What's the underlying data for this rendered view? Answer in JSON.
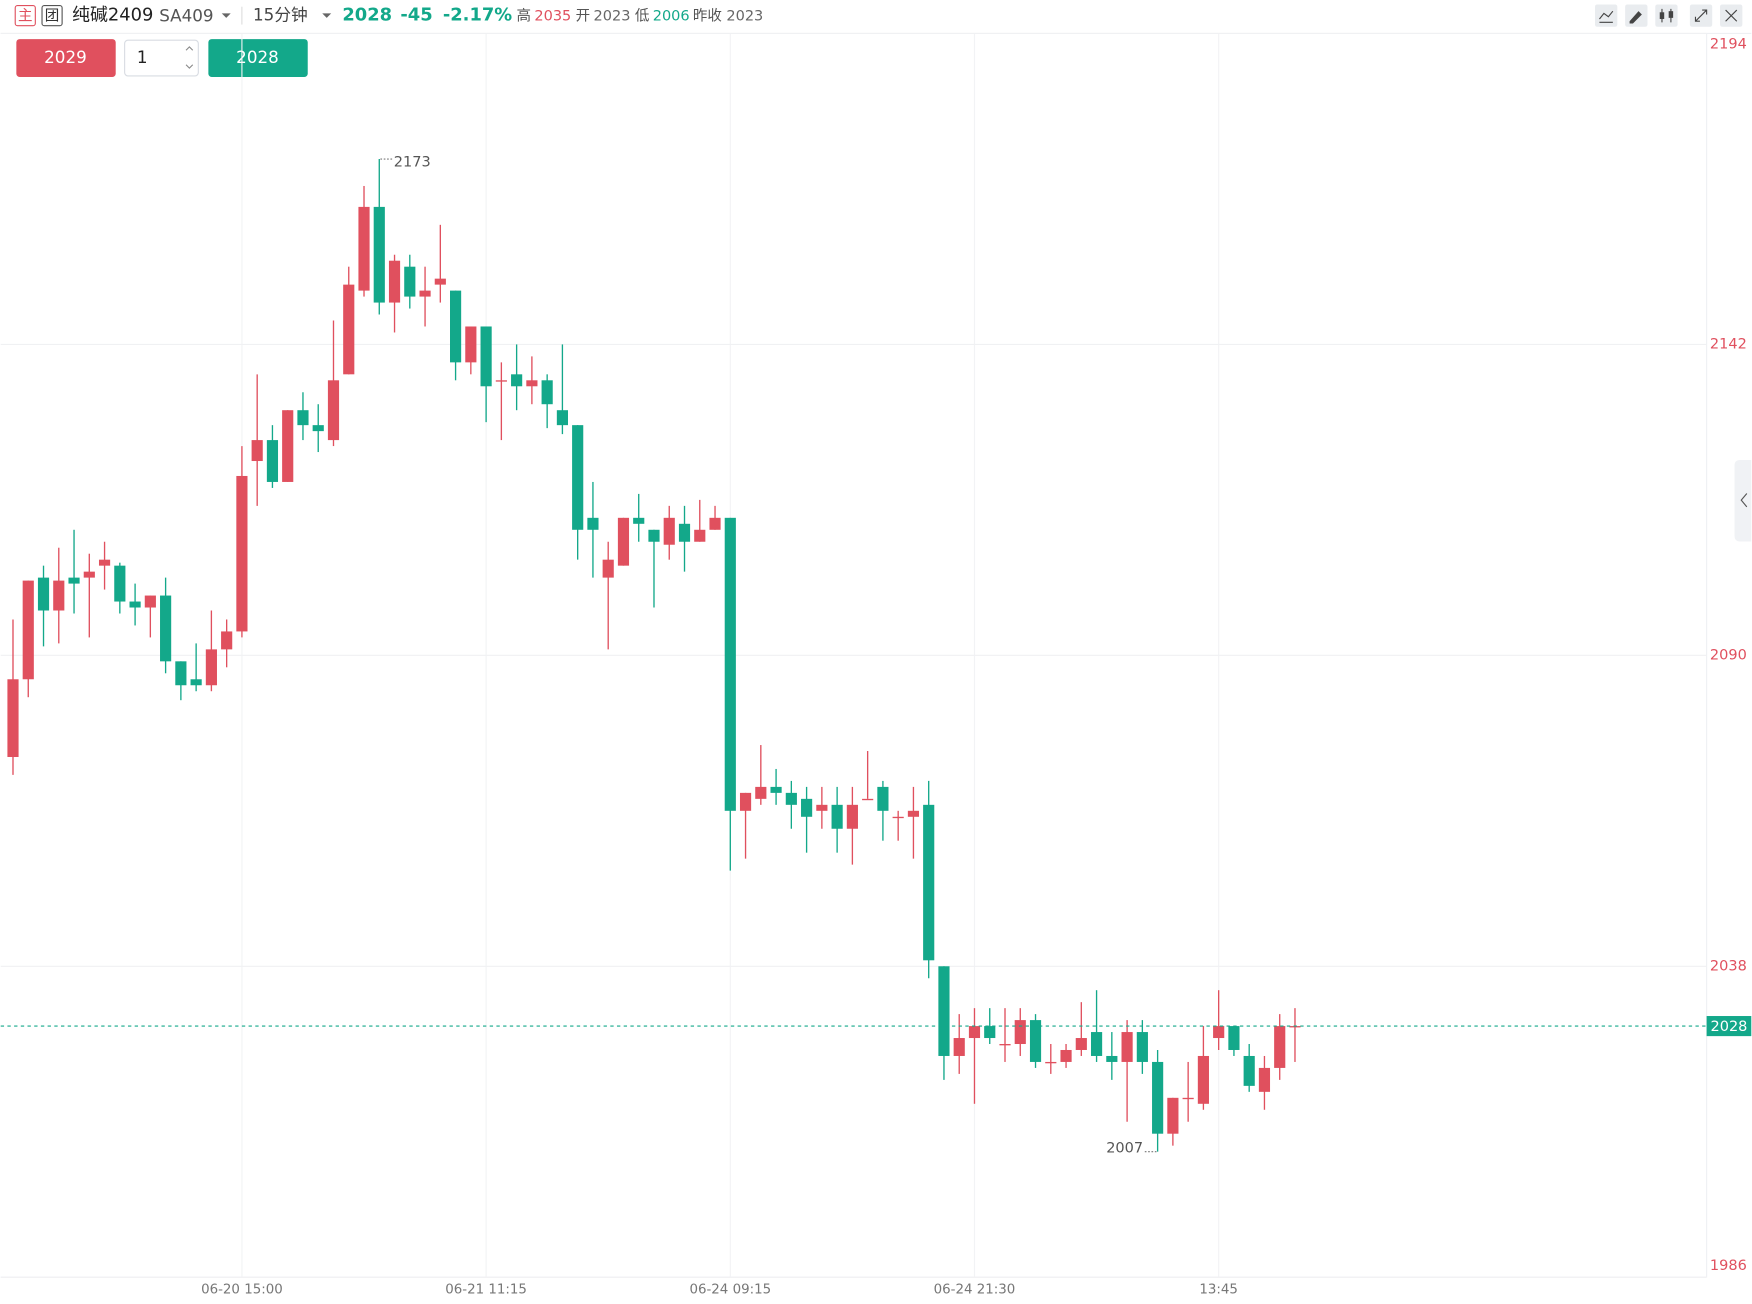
{
  "header": {
    "logo1": "主",
    "logo2": "团",
    "name": "纯碱2409",
    "code": "SA409",
    "interval": "15分钟",
    "price": "2028",
    "change": "-45",
    "change_pct": "-2.17%",
    "high_label": "高",
    "high": "2035",
    "open_label": "开",
    "open": "2023",
    "low_label": "低",
    "low": "2006",
    "prev_close_label": "昨收",
    "prev_close": "2023"
  },
  "order": {
    "sell": "2029",
    "qty": "1",
    "buy": "2028"
  },
  "chart_data": {
    "type": "candlestick",
    "up_color": "#e0505e",
    "down_color": "#13a88a",
    "ylim": [
      1986,
      2194
    ],
    "yticks": [
      1986,
      2038,
      2090,
      2142,
      2194
    ],
    "grid": true,
    "last_price": 2028,
    "max_label": 2173,
    "min_label": 2007,
    "categories": [
      null,
      null,
      null,
      null,
      null,
      null,
      null,
      null,
      null,
      null,
      null,
      null,
      null,
      null,
      null,
      "06-20 15:00",
      null,
      null,
      null,
      null,
      null,
      null,
      null,
      null,
      null,
      null,
      null,
      null,
      null,
      null,
      null,
      "06-21 11:15",
      null,
      null,
      null,
      null,
      null,
      null,
      null,
      null,
      null,
      null,
      null,
      null,
      null,
      null,
      null,
      "06-24 09:15",
      null,
      null,
      null,
      null,
      null,
      null,
      null,
      null,
      null,
      null,
      null,
      null,
      null,
      null,
      null,
      "06-24 21:30",
      null,
      null,
      null,
      null,
      null,
      null,
      null,
      null,
      null,
      null,
      null,
      null,
      null,
      null,
      null,
      "13:45",
      null,
      null,
      null,
      null,
      null
    ],
    "open": [
      2073,
      2086,
      2103,
      2097.5,
      2103,
      2103,
      2105,
      2105,
      2099,
      2098,
      2100,
      2089,
      2086,
      2085,
      2091,
      2094,
      2122.5,
      2126,
      2119,
      2131,
      2128.5,
      2126,
      2137,
      2151,
      2165,
      2149,
      2155,
      2150,
      2152,
      2151,
      2139,
      2145,
      2136,
      2137,
      2135,
      2136,
      2131,
      2128.5,
      2113,
      2103,
      2105,
      2113,
      2111,
      2108.5,
      2112,
      2109,
      2111,
      2113,
      2064,
      2066,
      2068,
      2067,
      2066,
      2064,
      2065,
      2061,
      2066,
      2068,
      2063,
      2063,
      2065,
      2038,
      2023,
      2026,
      2028,
      2025,
      2025,
      2029,
      2022,
      2022,
      2024,
      2027,
      2023,
      2022,
      2027,
      2022,
      2010,
      2016,
      2015,
      2026,
      2028,
      2023,
      2017,
      2021,
      2028
    ],
    "close": [
      2086,
      2102.5,
      2097.5,
      2102.5,
      2102,
      2104,
      2106,
      2099,
      2098,
      2100,
      2089,
      2085,
      2085,
      2091,
      2094,
      2120,
      2126,
      2119,
      2131,
      2128.5,
      2127.5,
      2136,
      2152,
      2165,
      2149,
      2156,
      2150,
      2151,
      2153,
      2139,
      2145,
      2135,
      2136,
      2135,
      2136,
      2132,
      2128.5,
      2111,
      2111,
      2106,
      2113,
      2112,
      2109,
      2113,
      2109,
      2111,
      2113,
      2064,
      2067,
      2068,
      2067,
      2065,
      2063,
      2065,
      2061,
      2065,
      2066,
      2064,
      2063,
      2064,
      2039,
      2023,
      2026,
      2028,
      2026,
      2025,
      2029,
      2022,
      2022,
      2024,
      2026,
      2023,
      2022,
      2027,
      2022,
      2010,
      2016,
      2016,
      2023,
      2028,
      2024,
      2018,
      2021,
      2028,
      2028
    ],
    "high": [
      2096,
      2102.5,
      2105,
      2108,
      2111,
      2107,
      2109,
      2105.5,
      2102,
      2100,
      2103,
      2089,
      2092,
      2097.5,
      2096,
      2125,
      2137,
      2128.5,
      2131,
      2134,
      2132,
      2146,
      2155,
      2168.5,
      2173,
      2157,
      2157,
      2155,
      2162,
      2151,
      2145,
      2145,
      2139,
      2142,
      2140,
      2137,
      2142,
      2128.5,
      2119,
      2109,
      2113,
      2117,
      2111,
      2115,
      2115,
      2116,
      2115,
      2113,
      2067,
      2075,
      2071,
      2069,
      2068,
      2068,
      2068,
      2068,
      2074,
      2069,
      2064,
      2068,
      2069,
      2038,
      2030,
      2031,
      2031,
      2031,
      2031,
      2030,
      2025,
      2025,
      2032,
      2034,
      2027,
      2029,
      2029,
      2024,
      2016,
      2022,
      2028,
      2034,
      2028,
      2025,
      2023,
      2030,
      2031
    ],
    "low": [
      2070,
      2083,
      2091.5,
      2092,
      2097,
      2093,
      2101,
      2097,
      2095,
      2093,
      2087,
      2082.5,
      2084,
      2084,
      2088,
      2093,
      2115,
      2118,
      2119,
      2126,
      2124,
      2125,
      2137,
      2150,
      2147,
      2144,
      2148,
      2145,
      2149,
      2136,
      2137,
      2129,
      2126,
      2131,
      2132,
      2128,
      2127,
      2106,
      2103,
      2091,
      2105,
      2109,
      2098,
      2106,
      2104,
      2109,
      2111,
      2054,
      2056,
      2065,
      2065,
      2061,
      2057,
      2061,
      2057,
      2055,
      2066,
      2059,
      2059,
      2056,
      2036,
      2019,
      2020,
      2015,
      2025,
      2022,
      2023,
      2021,
      2020,
      2021,
      2023,
      2022,
      2019,
      2012,
      2020,
      2007,
      2008,
      2012,
      2014,
      2024,
      2023,
      2017,
      2014,
      2019,
      2022
    ]
  }
}
